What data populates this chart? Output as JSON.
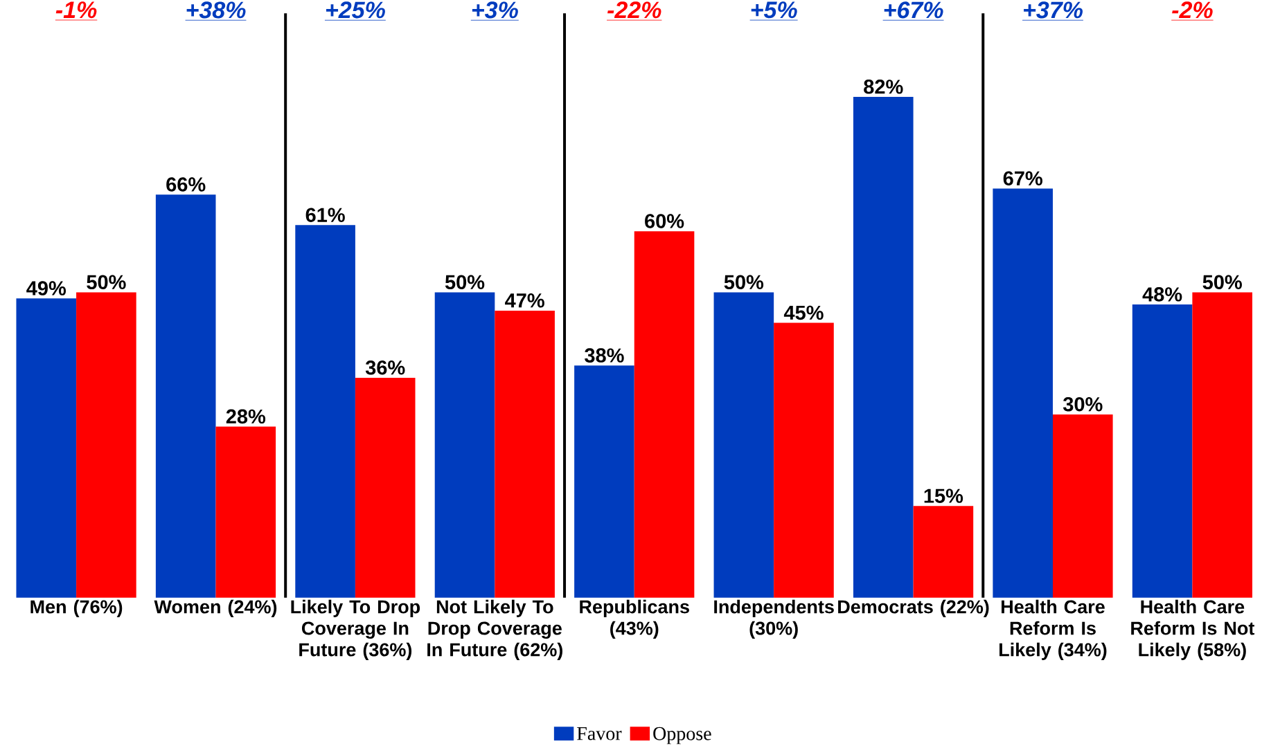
{
  "chart_data": {
    "type": "bar",
    "categories": [
      "Men (76%)",
      "Women (24%)",
      "Likely To Drop Coverage In Future (36%)",
      "Not Likely To Drop Coverage In Future (62%)",
      "Republicans (43%)",
      "Independents (30%)",
      "Democrats (22%)",
      "Health Care Reform Is Likely (34%)",
      "Health Care Reform Is Not Likely (58%)"
    ],
    "series": [
      {
        "name": "Favor",
        "color": "#003cbe",
        "values": [
          49,
          66,
          61,
          50,
          38,
          50,
          82,
          67,
          48
        ],
        "value_labels": [
          "49%",
          "66%",
          "61%",
          "50%",
          "38%",
          "50%",
          "82%",
          "67%",
          "48%"
        ]
      },
      {
        "name": "Oppose",
        "color": "#ff0000",
        "values": [
          50,
          28,
          36,
          47,
          60,
          45,
          15,
          30,
          50
        ],
        "value_labels": [
          "50%",
          "28%",
          "36%",
          "47%",
          "60%",
          "45%",
          "15%",
          "30%",
          "50%"
        ]
      }
    ],
    "annotations": [
      "-1%",
      "+38%",
      "+25%",
      "+3%",
      "-22%",
      "+5%",
      "+67%",
      "+37%",
      "-2%"
    ],
    "tick_labels": "x",
    "legend": "bottom"
  }
}
